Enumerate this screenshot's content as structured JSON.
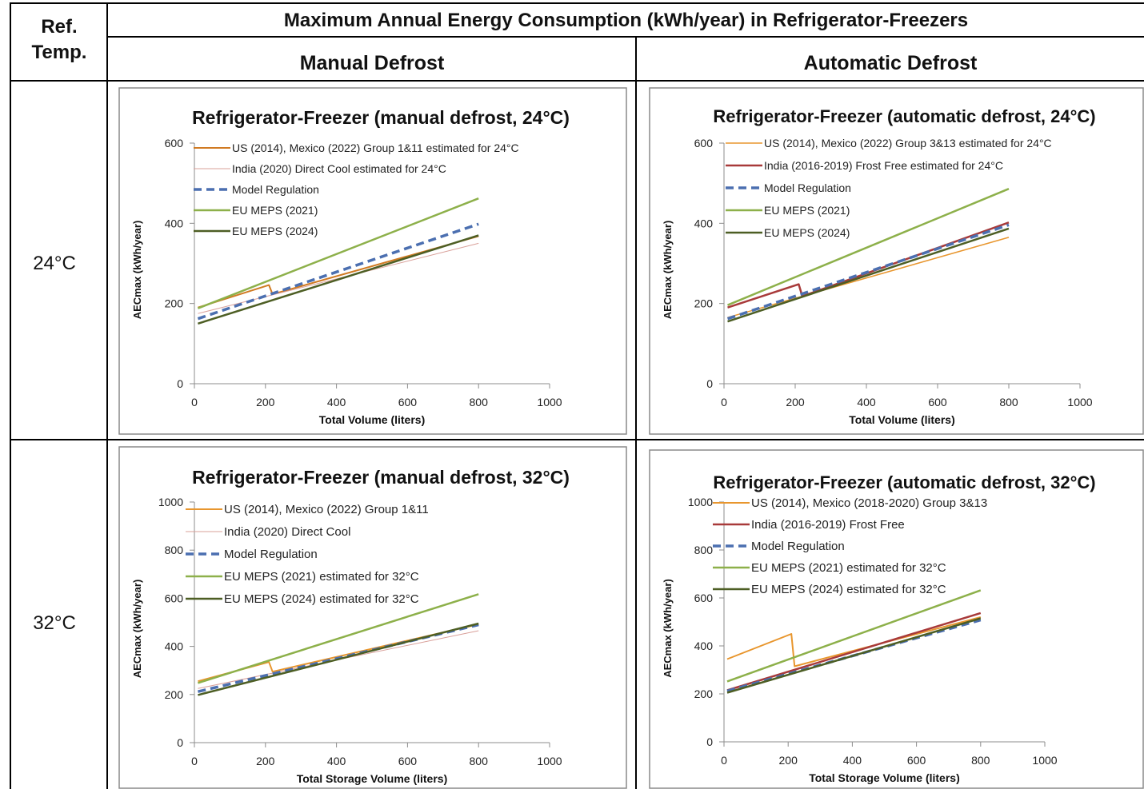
{
  "table": {
    "ref_header_line1": "Ref.",
    "ref_header_line2": "Temp.",
    "main_title": "Maximum Annual Energy Consumption (kWh/year) in Refrigerator-Freezers",
    "col_manual": "Manual Defrost",
    "col_auto": "Automatic Defrost",
    "row_24": "24°C",
    "row_32": "32°C"
  },
  "colors": {
    "orange": "#e8962e",
    "orange_dark": "#d07a22",
    "pink": "#d9a09a",
    "red": "#a83a3a",
    "blue": "#4b6fb0",
    "green": "#8db04a",
    "dark_green": "#4d5e24"
  },
  "chart_data": [
    {
      "type": "line",
      "title": "Refrigerator-Freezer (manual defrost, 24°C)",
      "xlabel": "Total Volume (liters)",
      "ylabel": "AECmax (kWh/year)",
      "xlim": [
        0,
        1000
      ],
      "ylim": [
        0,
        600
      ],
      "xticks": [
        0,
        200,
        400,
        600,
        800,
        1000
      ],
      "yticks": [
        0,
        200,
        400,
        600
      ],
      "legend_placement": "top-left",
      "grid": false,
      "series": [
        {
          "name": "US (2014), Mexico (2022)  Group 1&11 estimated for 24°C",
          "color": "#d07a22",
          "dash": false,
          "width": 2,
          "points": [
            [
              10,
              190
            ],
            [
              210,
              246
            ],
            [
              220,
              223
            ],
            [
              800,
              368
            ]
          ]
        },
        {
          "name": "India (2020) Direct Cool estimated for 24°C",
          "color": "#d9a09a",
          "dash": false,
          "width": 1,
          "points": [
            [
              10,
              175
            ],
            [
              800,
              350
            ]
          ]
        },
        {
          "name": "Model Regulation",
          "color": "#4b6fb0",
          "dash": true,
          "width": 3.5,
          "points": [
            [
              10,
              162
            ],
            [
              800,
              398
            ]
          ]
        },
        {
          "name": "EU MEPS (2021)",
          "color": "#8db04a",
          "dash": false,
          "width": 2.5,
          "points": [
            [
              10,
              188
            ],
            [
              800,
              462
            ]
          ]
        },
        {
          "name": "EU MEPS (2024)",
          "color": "#4d5e24",
          "dash": false,
          "width": 2.5,
          "points": [
            [
              10,
              150
            ],
            [
              800,
              370
            ]
          ]
        }
      ]
    },
    {
      "type": "line",
      "title": "Refrigerator-Freezer (automatic defrost, 24°C)",
      "xlabel": "Total Volume (liters)",
      "ylabel": "AECmax (kWh/year)",
      "xlim": [
        0,
        1000
      ],
      "ylim": [
        0,
        600
      ],
      "xticks": [
        0,
        200,
        400,
        600,
        800,
        1000
      ],
      "yticks": [
        0,
        200,
        400,
        600
      ],
      "legend_placement": "top-left",
      "grid": false,
      "series": [
        {
          "name": "US (2014), Mexico  (2022)  Group 3&13 estimated for 24°C",
          "color": "#e8962e",
          "dash": false,
          "width": 1.5,
          "points": [
            [
              10,
              165
            ],
            [
              800,
              365
            ]
          ]
        },
        {
          "name": "India (2016-2019) Frost Free estimated for 24°C",
          "color": "#a83a3a",
          "dash": false,
          "width": 2.5,
          "points": [
            [
              10,
              190
            ],
            [
              210,
              248
            ],
            [
              220,
              218
            ],
            [
              800,
              402
            ]
          ]
        },
        {
          "name": "Model Regulation",
          "color": "#4b6fb0",
          "dash": true,
          "width": 3.5,
          "points": [
            [
              10,
              162
            ],
            [
              800,
              396
            ]
          ]
        },
        {
          "name": "EU MEPS (2021)",
          "color": "#8db04a",
          "dash": false,
          "width": 2.5,
          "points": [
            [
              10,
              196
            ],
            [
              800,
              486
            ]
          ]
        },
        {
          "name": "EU MEPS (2024)",
          "color": "#4d5e24",
          "dash": false,
          "width": 2.5,
          "points": [
            [
              10,
              155
            ],
            [
              800,
              387
            ]
          ]
        }
      ]
    },
    {
      "type": "line",
      "title": "Refrigerator-Freezer (manual defrost, 32°C)",
      "xlabel": "Total Storage Volume (liters)",
      "ylabel": "AECmax (kWh/year)",
      "xlim": [
        0,
        1000
      ],
      "ylim": [
        0,
        1000
      ],
      "xticks": [
        0,
        200,
        400,
        600,
        800,
        1000
      ],
      "yticks": [
        0,
        200,
        400,
        600,
        800,
        1000
      ],
      "legend_placement": "top-left",
      "grid": false,
      "series": [
        {
          "name": "US (2014), Mexico (2022) Group 1&11",
          "color": "#e8962e",
          "dash": false,
          "width": 2,
          "points": [
            [
              10,
              255
            ],
            [
              210,
              335
            ],
            [
              220,
              295
            ],
            [
              800,
              492
            ]
          ]
        },
        {
          "name": "India (2020) Direct Cool",
          "color": "#d9a09a",
          "dash": false,
          "width": 1,
          "points": [
            [
              10,
              225
            ],
            [
              800,
              465
            ]
          ]
        },
        {
          "name": "Model Regulation",
          "color": "#4b6fb0",
          "dash": true,
          "width": 3.5,
          "points": [
            [
              10,
              212
            ],
            [
              800,
              490
            ]
          ]
        },
        {
          "name": "EU MEPS (2021) estimated for 32°C",
          "color": "#8db04a",
          "dash": false,
          "width": 2.5,
          "points": [
            [
              10,
              248
            ],
            [
              800,
              617
            ]
          ]
        },
        {
          "name": "EU MEPS (2024) estimated for 32°C",
          "color": "#4d5e24",
          "dash": false,
          "width": 2.5,
          "points": [
            [
              10,
              198
            ],
            [
              800,
              495
            ]
          ]
        }
      ]
    },
    {
      "type": "line",
      "title": "Refrigerator-Freezer (automatic defrost, 32°C)",
      "xlabel": "Total Storage Volume (liters)",
      "ylabel": "AECmax (kWh/year)",
      "xlim": [
        0,
        1000
      ],
      "ylim": [
        0,
        1000
      ],
      "xticks": [
        0,
        200,
        400,
        600,
        800,
        1000
      ],
      "yticks": [
        0,
        200,
        400,
        600,
        800,
        1000
      ],
      "legend_placement": "top-left",
      "grid": false,
      "series": [
        {
          "name": "US (2014), Mexico (2018-2020) Group 3&13",
          "color": "#e8962e",
          "dash": false,
          "width": 2,
          "points": [
            [
              10,
              345
            ],
            [
              210,
              450
            ],
            [
              220,
              315
            ],
            [
              800,
              520
            ]
          ]
        },
        {
          "name": "India (2016-2019) Frost Free",
          "color": "#a83a3a",
          "dash": false,
          "width": 2.5,
          "points": [
            [
              10,
              215
            ],
            [
              800,
              537
            ]
          ]
        },
        {
          "name": "Model Regulation",
          "color": "#4b6fb0",
          "dash": true,
          "width": 3.5,
          "points": [
            [
              10,
              212
            ],
            [
              800,
              508
            ]
          ]
        },
        {
          "name": "EU MEPS (2021) estimated for 32°C",
          "color": "#8db04a",
          "dash": false,
          "width": 2.5,
          "points": [
            [
              10,
              252
            ],
            [
              800,
              632
            ]
          ]
        },
        {
          "name": "EU MEPS (2024) estimated for 32°C",
          "color": "#4d5e24",
          "dash": false,
          "width": 2.5,
          "points": [
            [
              10,
              205
            ],
            [
              800,
              515
            ]
          ]
        }
      ]
    }
  ]
}
